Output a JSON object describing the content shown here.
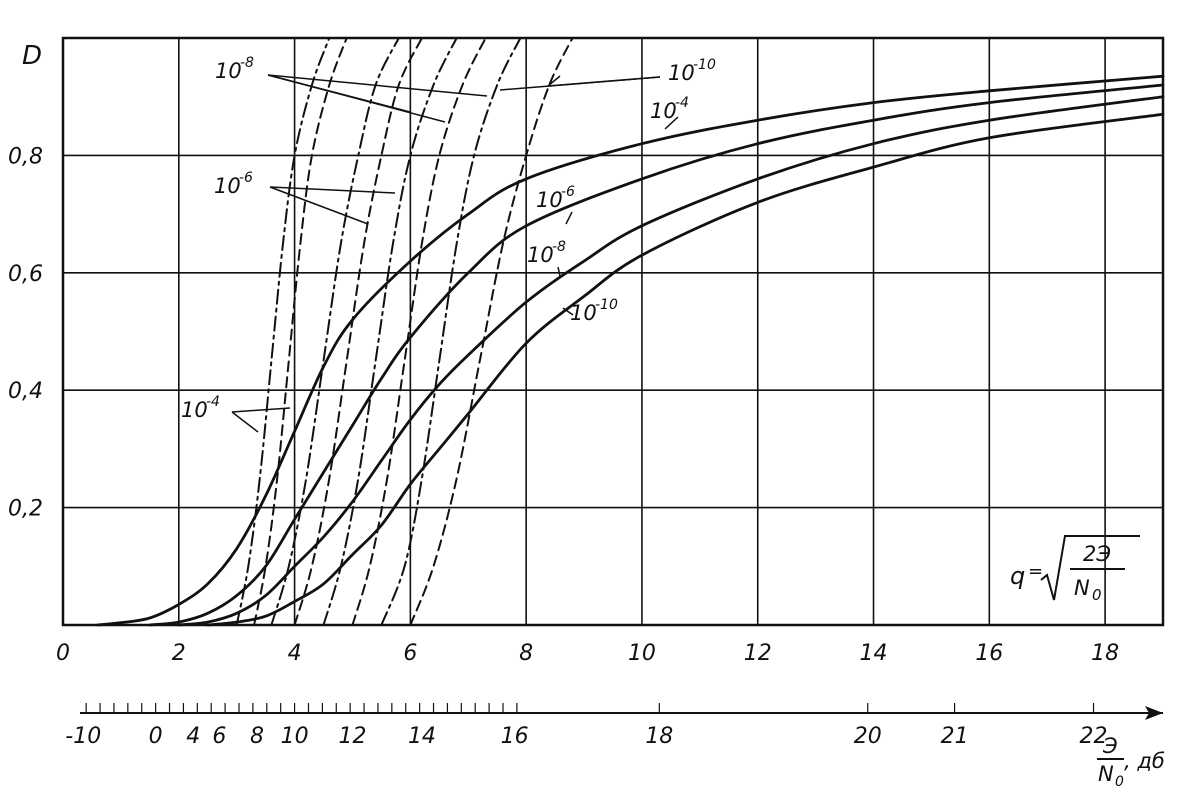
{
  "chart_data": {
    "type": "line",
    "title": "",
    "ylabel": "D",
    "xlabel": "q",
    "formula": {
      "lhs": "q",
      "eq": "=",
      "numerator": "2Э",
      "denominator": "N",
      "den_sub": "0"
    },
    "xlim": [
      0,
      19
    ],
    "ylim": [
      0,
      1
    ],
    "x_ticks": [
      "0",
      "2",
      "4",
      "6",
      "8",
      "10",
      "12",
      "14",
      "16",
      "18"
    ],
    "y_ticks": [
      "0,2",
      "0,4",
      "0,6",
      "0,8"
    ],
    "grid": true,
    "db_axis": {
      "labels": [
        "-10",
        "0",
        "4",
        "6",
        "8",
        "10",
        "12",
        "14",
        "16",
        "18",
        "20",
        "21",
        "22"
      ],
      "label_q": [
        0.35,
        1.6,
        2.25,
        2.7,
        3.35,
        4.0,
        5.0,
        6.2,
        7.8,
        10.3,
        13.9,
        15.4,
        17.8
      ],
      "unit_num": "Э",
      "unit_den": "N",
      "unit_den_sub": "0",
      "unit_suffix": ", дб"
    },
    "annotations": [
      {
        "base": "10",
        "exp": "-8"
      },
      {
        "base": "10",
        "exp": "-10"
      },
      {
        "base": "10",
        "exp": "-4"
      },
      {
        "base": "10",
        "exp": "-6"
      },
      {
        "base": "10",
        "exp": "-6"
      },
      {
        "base": "10",
        "exp": "-8"
      },
      {
        "base": "10",
        "exp": "-10"
      },
      {
        "base": "10",
        "exp": "-4"
      }
    ],
    "series": [
      {
        "label": "10^-4",
        "style": "solid",
        "points": [
          [
            0.6,
            0
          ],
          [
            1,
            0.004
          ],
          [
            1.5,
            0.012
          ],
          [
            2,
            0.035
          ],
          [
            2.5,
            0.07
          ],
          [
            3,
            0.13
          ],
          [
            3.5,
            0.22
          ],
          [
            4,
            0.33
          ],
          [
            4.5,
            0.44
          ],
          [
            5,
            0.52
          ],
          [
            6,
            0.62
          ],
          [
            7,
            0.7
          ],
          [
            8,
            0.76
          ],
          [
            10,
            0.82
          ],
          [
            12,
            0.86
          ],
          [
            14,
            0.89
          ],
          [
            16,
            0.91
          ],
          [
            19,
            0.935
          ]
        ]
      },
      {
        "label": "10^-6",
        "style": "solid",
        "points": [
          [
            1.5,
            0
          ],
          [
            2,
            0.005
          ],
          [
            2.5,
            0.02
          ],
          [
            3,
            0.05
          ],
          [
            3.5,
            0.1
          ],
          [
            4,
            0.18
          ],
          [
            4.5,
            0.26
          ],
          [
            5,
            0.34
          ],
          [
            5.5,
            0.42
          ],
          [
            6,
            0.49
          ],
          [
            7,
            0.6
          ],
          [
            8,
            0.68
          ],
          [
            10,
            0.76
          ],
          [
            12,
            0.82
          ],
          [
            14,
            0.86
          ],
          [
            16,
            0.89
          ],
          [
            19,
            0.92
          ]
        ]
      },
      {
        "label": "10^-8",
        "style": "solid",
        "points": [
          [
            2,
            0
          ],
          [
            2.5,
            0.005
          ],
          [
            3,
            0.02
          ],
          [
            3.5,
            0.05
          ],
          [
            4,
            0.1
          ],
          [
            4.5,
            0.15
          ],
          [
            5,
            0.21
          ],
          [
            5.5,
            0.28
          ],
          [
            6,
            0.35
          ],
          [
            6.5,
            0.41
          ],
          [
            7,
            0.46
          ],
          [
            8,
            0.55
          ],
          [
            9,
            0.62
          ],
          [
            10,
            0.68
          ],
          [
            12,
            0.76
          ],
          [
            14,
            0.82
          ],
          [
            16,
            0.86
          ],
          [
            19,
            0.9
          ]
        ]
      },
      {
        "label": "10^-10",
        "style": "solid",
        "points": [
          [
            2.5,
            0
          ],
          [
            3,
            0.005
          ],
          [
            3.5,
            0.015
          ],
          [
            4,
            0.04
          ],
          [
            4.5,
            0.07
          ],
          [
            5,
            0.12
          ],
          [
            5.5,
            0.17
          ],
          [
            6,
            0.24
          ],
          [
            6.5,
            0.3
          ],
          [
            7,
            0.36
          ],
          [
            8,
            0.48
          ],
          [
            9,
            0.56
          ],
          [
            10,
            0.63
          ],
          [
            12,
            0.72
          ],
          [
            14,
            0.78
          ],
          [
            16,
            0.83
          ],
          [
            19,
            0.87
          ]
        ]
      },
      {
        "label": "10^-4",
        "style": "dashdot",
        "points": [
          [
            3.0,
            0
          ],
          [
            3.2,
            0.1
          ],
          [
            3.4,
            0.25
          ],
          [
            3.6,
            0.45
          ],
          [
            3.8,
            0.65
          ],
          [
            4.0,
            0.8
          ],
          [
            4.3,
            0.92
          ],
          [
            4.6,
            1.0
          ]
        ]
      },
      {
        "label": "10^-4",
        "style": "dashed",
        "points": [
          [
            3.3,
            0
          ],
          [
            3.5,
            0.1
          ],
          [
            3.7,
            0.25
          ],
          [
            3.9,
            0.45
          ],
          [
            4.1,
            0.65
          ],
          [
            4.3,
            0.8
          ],
          [
            4.6,
            0.92
          ],
          [
            4.9,
            1.0
          ]
        ]
      },
      {
        "label": "10^-6",
        "style": "dashdot",
        "points": [
          [
            3.6,
            0
          ],
          [
            3.9,
            0.1
          ],
          [
            4.2,
            0.25
          ],
          [
            4.5,
            0.45
          ],
          [
            4.8,
            0.65
          ],
          [
            5.1,
            0.8
          ],
          [
            5.4,
            0.92
          ],
          [
            5.8,
            1.0
          ]
        ]
      },
      {
        "label": "10^-6",
        "style": "dashed",
        "points": [
          [
            4.0,
            0
          ],
          [
            4.3,
            0.1
          ],
          [
            4.6,
            0.25
          ],
          [
            4.9,
            0.45
          ],
          [
            5.2,
            0.65
          ],
          [
            5.5,
            0.8
          ],
          [
            5.8,
            0.92
          ],
          [
            6.2,
            1.0
          ]
        ]
      },
      {
        "label": "10^-8",
        "style": "dashdot",
        "points": [
          [
            4.5,
            0
          ],
          [
            4.8,
            0.1
          ],
          [
            5.1,
            0.25
          ],
          [
            5.4,
            0.45
          ],
          [
            5.7,
            0.65
          ],
          [
            6.0,
            0.8
          ],
          [
            6.4,
            0.92
          ],
          [
            6.8,
            1.0
          ]
        ]
      },
      {
        "label": "10^-8",
        "style": "dashed",
        "points": [
          [
            5.0,
            0
          ],
          [
            5.3,
            0.1
          ],
          [
            5.6,
            0.25
          ],
          [
            5.9,
            0.45
          ],
          [
            6.2,
            0.65
          ],
          [
            6.5,
            0.8
          ],
          [
            6.9,
            0.92
          ],
          [
            7.3,
            1.0
          ]
        ]
      },
      {
        "label": "10^-10",
        "style": "dashdot",
        "points": [
          [
            5.5,
            0
          ],
          [
            5.9,
            0.1
          ],
          [
            6.2,
            0.25
          ],
          [
            6.5,
            0.45
          ],
          [
            6.8,
            0.65
          ],
          [
            7.1,
            0.8
          ],
          [
            7.5,
            0.92
          ],
          [
            7.9,
            1.0
          ]
        ]
      },
      {
        "label": "10^-10",
        "style": "dashed",
        "points": [
          [
            6.0,
            0
          ],
          [
            6.4,
            0.1
          ],
          [
            6.8,
            0.25
          ],
          [
            7.2,
            0.45
          ],
          [
            7.6,
            0.65
          ],
          [
            8.0,
            0.8
          ],
          [
            8.4,
            0.92
          ],
          [
            8.8,
            1.0
          ]
        ]
      }
    ]
  }
}
